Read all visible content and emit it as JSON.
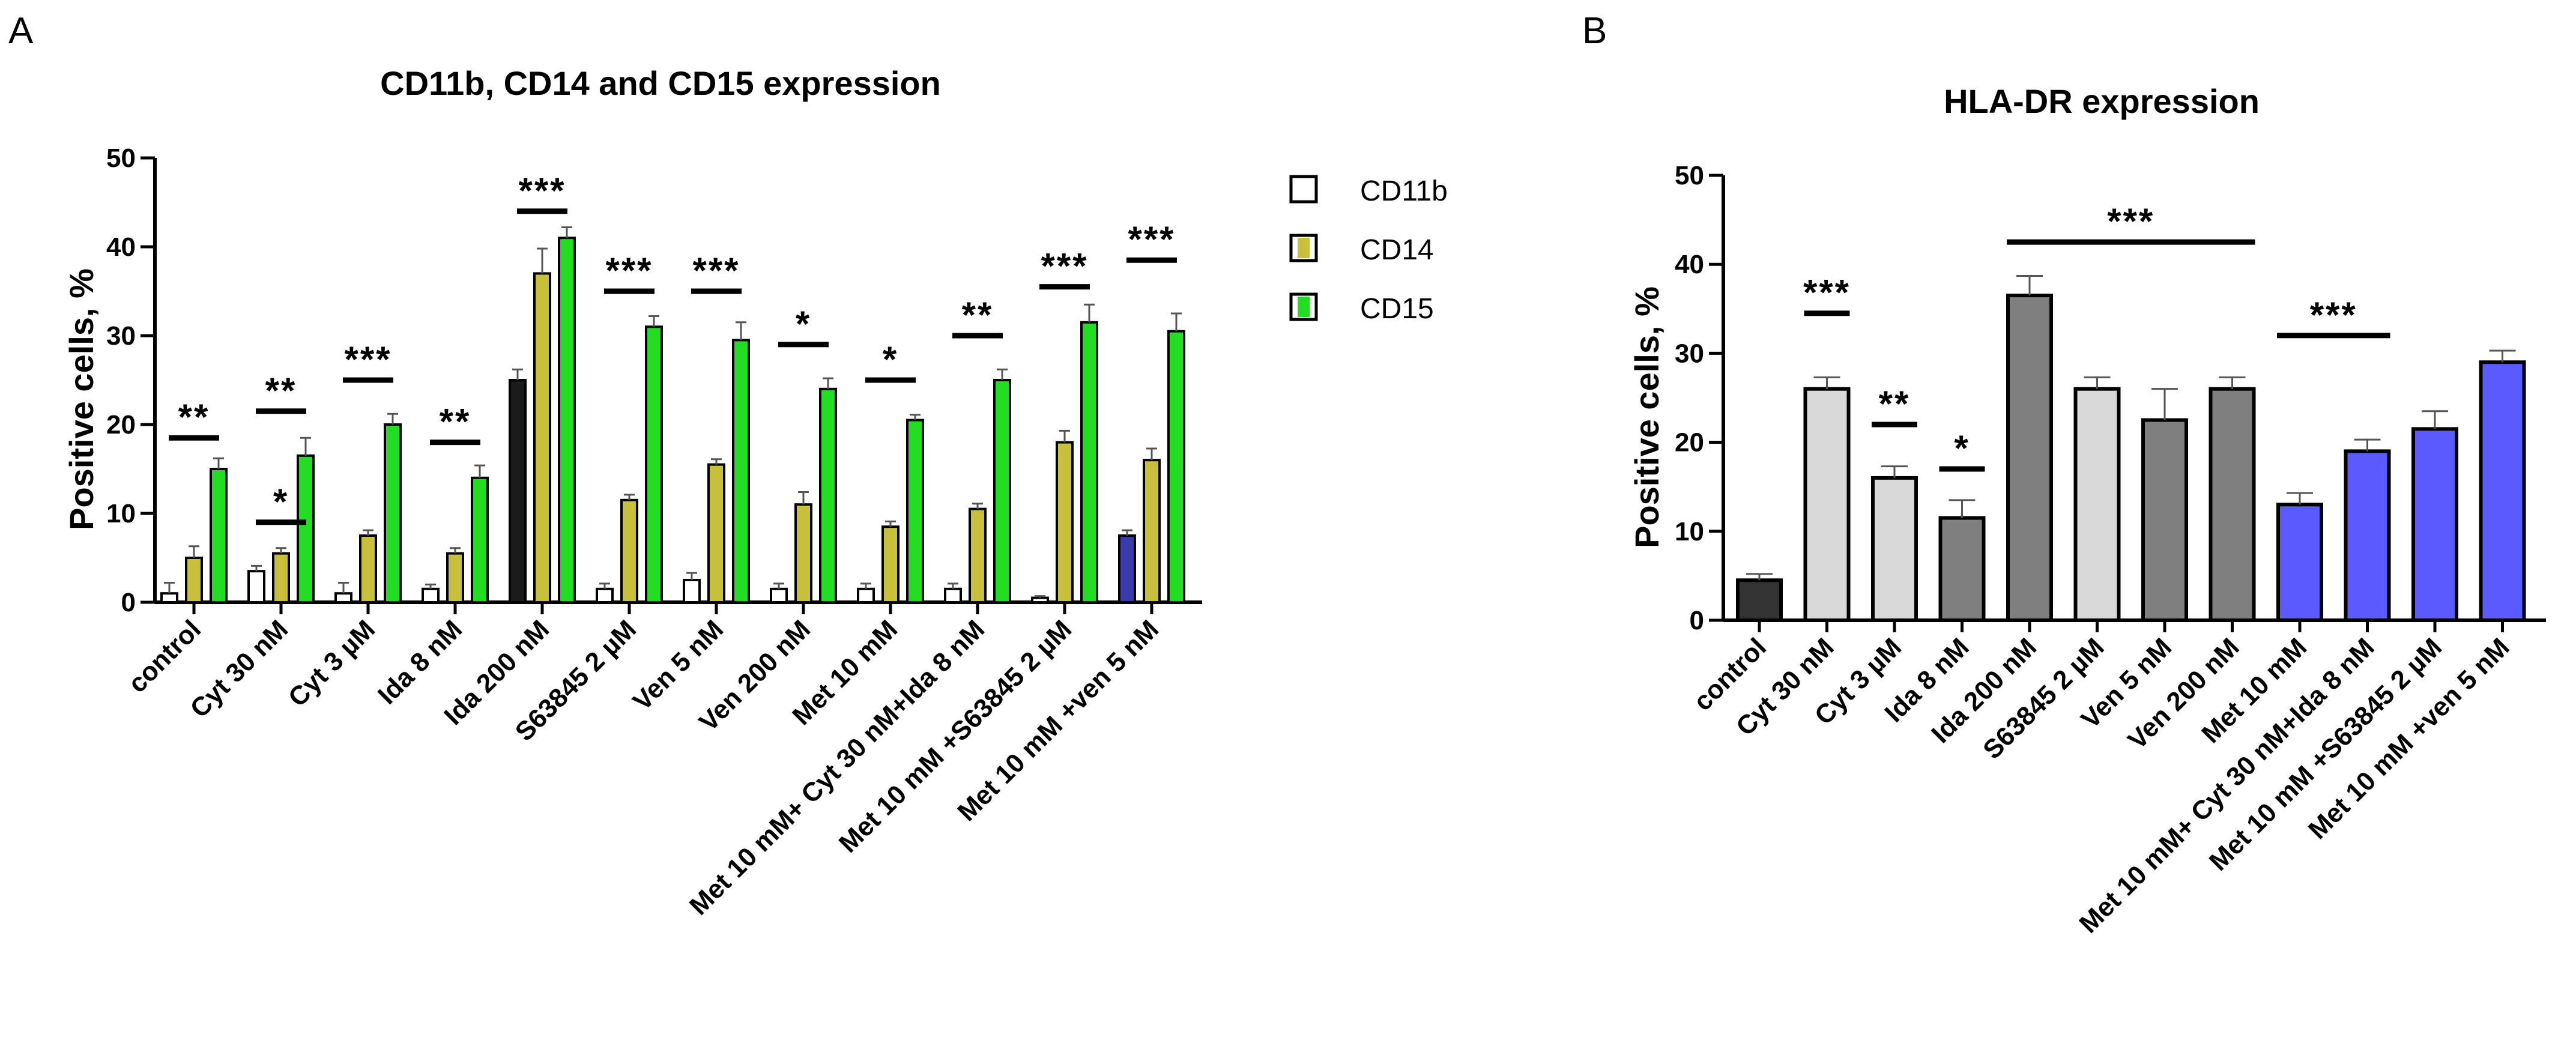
{
  "panels": {
    "a": {
      "letter": "A"
    },
    "b": {
      "letter": "B"
    }
  },
  "chart_data": [
    {
      "type": "bar",
      "title": "CD11b, CD14 and CD15 expression",
      "xlabel": "",
      "ylabel": "Positive cells, %",
      "ylim": [
        0,
        50
      ],
      "yticks": [
        "0",
        "10",
        "20",
        "30",
        "40",
        "50"
      ],
      "categories": [
        "control",
        "Cyt 30 nM",
        "Cyt 3 µM",
        "Ida 8 nM",
        "Ida 200 nM",
        "S63845 2 µM",
        "Ven 5 nM",
        "Ven 200 nM",
        "Met 10 mM",
        "Met 10 mM+ Cyt 30 nM+Ida 8 nM",
        "Met 10 mM +S63845 2 µM",
        "Met 10 mM +ven 5 nM"
      ],
      "series": [
        {
          "name": "CD11b",
          "color": "#ffffff",
          "values": [
            1.0,
            3.5,
            1.0,
            1.5,
            25.0,
            1.5,
            2.5,
            1.5,
            1.5,
            1.5,
            0.5,
            7.5
          ],
          "errors": [
            1.2,
            0.6,
            1.2,
            0.5,
            1.2,
            0.6,
            0.8,
            0.6,
            0.6,
            0.6,
            0.2,
            0.6
          ]
        },
        {
          "name": "CD14",
          "color": "#c8c03a",
          "values": [
            5.0,
            5.5,
            7.5,
            5.5,
            37.0,
            11.5,
            15.5,
            11.0,
            8.5,
            10.5,
            18.0,
            16.0
          ],
          "errors": [
            1.3,
            0.6,
            0.6,
            0.6,
            2.8,
            0.6,
            0.6,
            1.4,
            0.6,
            0.6,
            1.3,
            1.3
          ]
        },
        {
          "name": "CD15",
          "color": "#22dd22",
          "values": [
            15.0,
            16.5,
            20.0,
            14.0,
            41.0,
            31.0,
            29.5,
            24.0,
            20.5,
            25.0,
            31.5,
            30.5
          ],
          "errors": [
            1.2,
            2.0,
            1.2,
            1.4,
            1.2,
            1.2,
            2.0,
            1.2,
            0.6,
            1.2,
            2.0,
            2.0
          ]
        }
      ],
      "special_fills": [
        {
          "category": 4,
          "series": 0,
          "color": "#1a1a1a"
        },
        {
          "category": 11,
          "series": 0,
          "color": "#3a3aaa"
        }
      ],
      "significance": [
        {
          "stars": "**",
          "y": 18.5,
          "from": 0,
          "to": 0
        },
        {
          "stars": "*",
          "y": 9.0,
          "from": 1,
          "to": 1
        },
        {
          "stars": "**",
          "y": 21.5,
          "from": 1,
          "to": 1
        },
        {
          "stars": "***",
          "y": 25.0,
          "from": 2,
          "to": 2
        },
        {
          "stars": "**",
          "y": 18.0,
          "from": 3,
          "to": 3
        },
        {
          "stars": "***",
          "y": 44.0,
          "from": 4,
          "to": 4
        },
        {
          "stars": "***",
          "y": 35.0,
          "from": 5,
          "to": 5
        },
        {
          "stars": "***",
          "y": 35.0,
          "from": 6,
          "to": 6
        },
        {
          "stars": "*",
          "y": 29.0,
          "from": 7,
          "to": 7
        },
        {
          "stars": "*",
          "y": 25.0,
          "from": 8,
          "to": 8
        },
        {
          "stars": "**",
          "y": 30.0,
          "from": 9,
          "to": 9
        },
        {
          "stars": "***",
          "y": 35.5,
          "from": 10,
          "to": 10
        },
        {
          "stars": "***",
          "y": 38.5,
          "from": 11,
          "to": 11
        }
      ],
      "legend_position": "top-right"
    },
    {
      "type": "bar",
      "title": "HLA-DR expression",
      "xlabel": "",
      "ylabel": "Positive cells, %",
      "ylim": [
        0,
        50
      ],
      "yticks": [
        "0",
        "10",
        "20",
        "30",
        "40",
        "50"
      ],
      "categories": [
        "control",
        "Cyt 30 nM",
        "Cyt 3 µM",
        "Ida 8 nM",
        "Ida 200 nM",
        "S63845 2 µM",
        "Ven 5 nM",
        "Ven 200 nM",
        "Met 10 mM",
        "Met 10 mM+ Cyt 30 nM+Ida 8 nM",
        "Met 10 mM +S63845 2 µM",
        "Met 10 mM +ven 5 nM"
      ],
      "values": [
        4.5,
        26.0,
        16.0,
        11.5,
        36.5,
        26.0,
        22.5,
        26.0,
        13.0,
        19.0,
        21.5,
        29.0
      ],
      "errors": [
        0.7,
        1.3,
        1.3,
        2.0,
        2.2,
        1.3,
        3.5,
        1.3,
        1.3,
        1.3,
        2.0,
        1.3
      ],
      "colors": [
        "#333333",
        "#d9d9d9",
        "#d9d9d9",
        "#7f7f7f",
        "#7f7f7f",
        "#d9d9d9",
        "#7f7f7f",
        "#7f7f7f",
        "#5a5aff",
        "#5a5aff",
        "#5a5aff",
        "#5a5aff"
      ],
      "significance": [
        {
          "stars": "***",
          "y": 34.5,
          "from": 1,
          "to": 1
        },
        {
          "stars": "**",
          "y": 22.0,
          "from": 2,
          "to": 2
        },
        {
          "stars": "*",
          "y": 17.0,
          "from": 3,
          "to": 3
        },
        {
          "stars": "***",
          "y": 42.5,
          "from": 4,
          "to": 7
        },
        {
          "stars": "***",
          "y": 32.0,
          "from": 8,
          "to": 9
        }
      ]
    }
  ]
}
